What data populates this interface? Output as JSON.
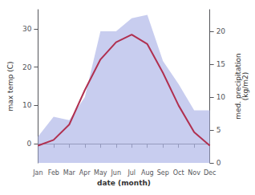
{
  "chart_data": {
    "type": "line",
    "xlabel": "date (month)",
    "ylabel": "max temp (C)",
    "y2label": "med. precipitation\n(kg/m2)",
    "categories": [
      "Jan",
      "Feb",
      "Mar",
      "Apr",
      "May",
      "Jun",
      "Jul",
      "Aug",
      "Sep",
      "Oct",
      "Nov",
      "Dec"
    ],
    "series": [
      {
        "type": "area",
        "color": "#b0b8e8",
        "axis": "y2",
        "values": [
          4.0,
          7.0,
          6.5,
          10.0,
          20.0,
          20.0,
          22.0,
          22.5,
          15.5,
          12.0,
          8.0,
          8.0
        ]
      },
      {
        "type": "line",
        "color": "#b03050",
        "values": [
          -0.5,
          1.0,
          5.0,
          14.0,
          22.0,
          26.5,
          28.5,
          26.0,
          18.5,
          10.0,
          3.0,
          -0.5
        ]
      }
    ],
    "ylim": [
      -5,
      35
    ],
    "yticks": [
      0,
      10,
      20,
      30
    ],
    "y2lim": [
      0,
      23.3
    ],
    "y2ticks": [
      0,
      5,
      10,
      15,
      20
    ],
    "grid": false
  }
}
